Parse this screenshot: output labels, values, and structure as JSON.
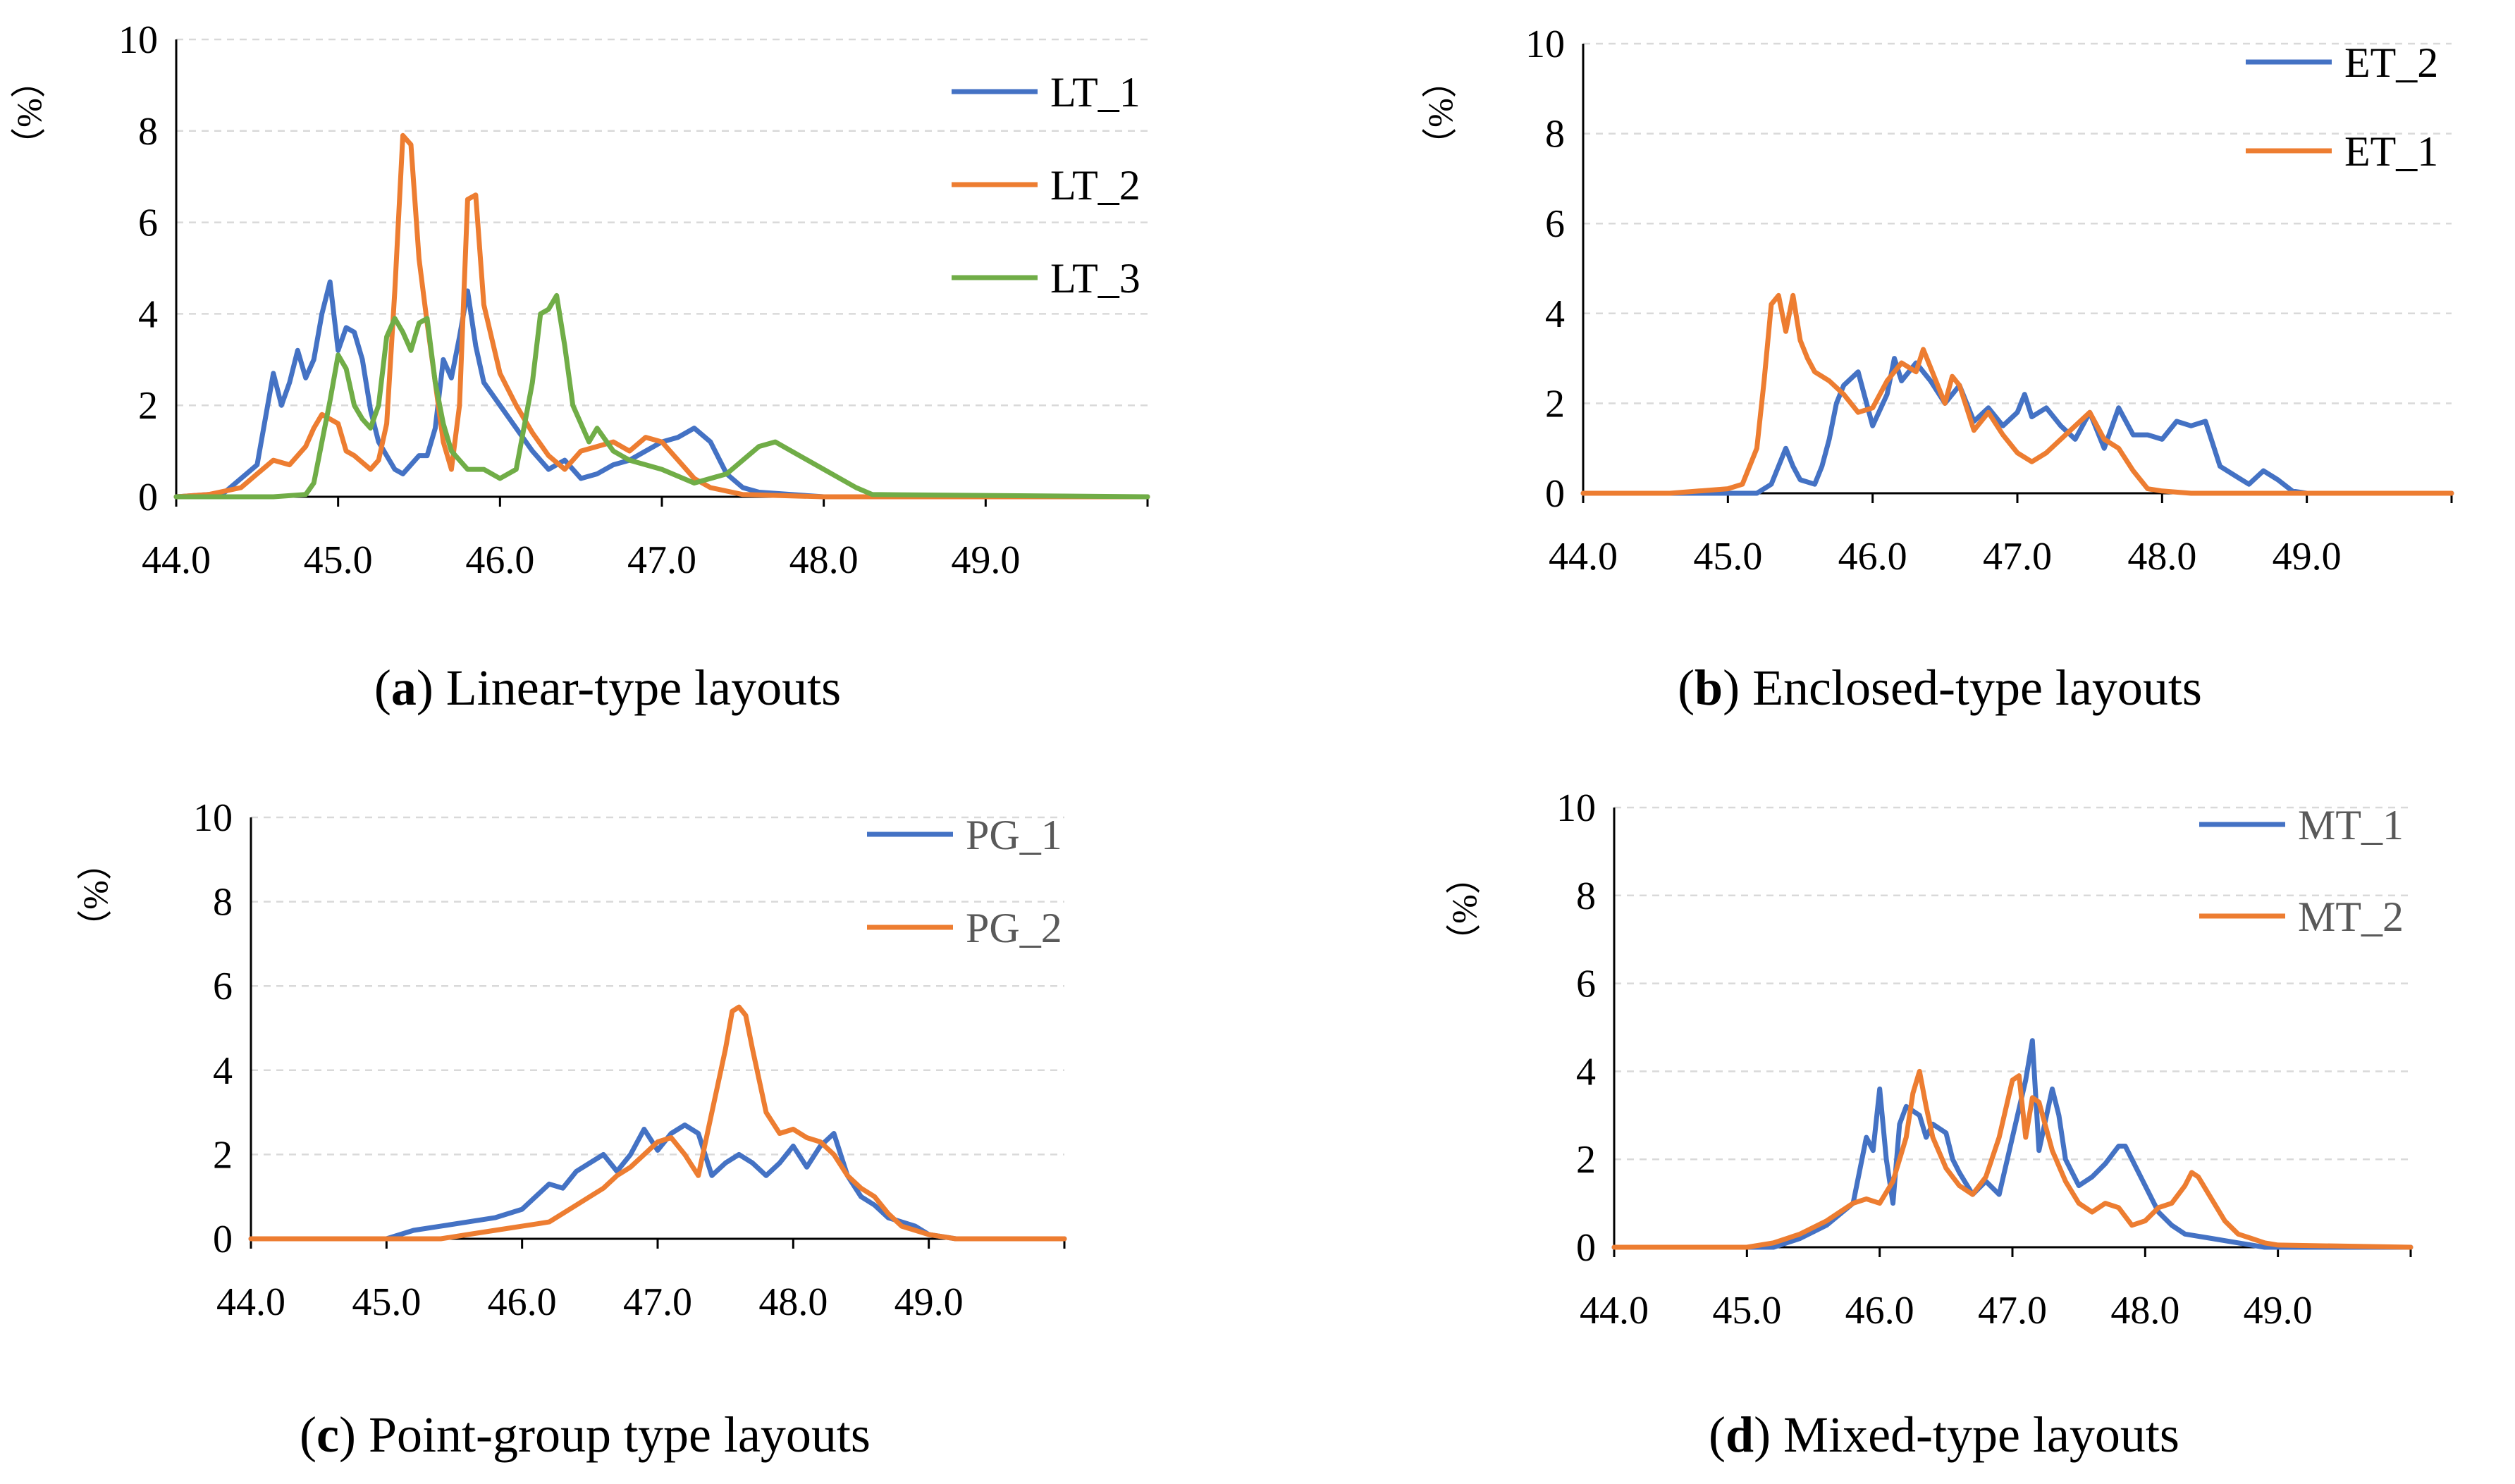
{
  "colors": {
    "blue": "#4472C4",
    "orange": "#ED7D31",
    "green": "#70AD47",
    "gridline": "#d9d9d9",
    "axis": "#000000"
  },
  "chart_data": [
    {
      "id": "a",
      "type": "line",
      "caption_letter": "a",
      "caption_text": " Linear-type layouts",
      "ylabel": "（%）",
      "x_tick_labels": [
        "44.0",
        "45.0",
        "46.0",
        "47.0",
        "48.0",
        "49.0"
      ],
      "y_tick_labels": [
        "0",
        "2",
        "4",
        "6",
        "8",
        "10"
      ],
      "xlim": [
        44.0,
        50.0
      ],
      "ylim": [
        0,
        10
      ],
      "legend_position": "top-right",
      "series": [
        {
          "name": "LT_1",
          "color": "#4472C4",
          "x": [
            44.0,
            44.2,
            44.3,
            44.4,
            44.5,
            44.6,
            44.65,
            44.7,
            44.75,
            44.8,
            44.85,
            44.9,
            44.95,
            45.0,
            45.05,
            45.1,
            45.15,
            45.2,
            45.25,
            45.3,
            45.35,
            45.4,
            45.5,
            45.55,
            45.6,
            45.65,
            45.7,
            45.75,
            45.8,
            45.85,
            45.9,
            46.0,
            46.1,
            46.2,
            46.3,
            46.4,
            46.5,
            46.6,
            46.7,
            46.8,
            46.9,
            47.0,
            47.1,
            47.2,
            47.3,
            47.4,
            47.5,
            47.6,
            47.8,
            48.0,
            50.0
          ],
          "y": [
            0,
            0.05,
            0.1,
            0.4,
            0.7,
            2.7,
            2.0,
            2.5,
            3.2,
            2.6,
            3.0,
            4.0,
            4.7,
            3.2,
            3.7,
            3.6,
            3.0,
            1.9,
            1.2,
            0.9,
            0.6,
            0.5,
            0.9,
            0.9,
            1.5,
            3.0,
            2.6,
            3.5,
            4.5,
            3.3,
            2.5,
            2.0,
            1.5,
            1.0,
            0.6,
            0.8,
            0.4,
            0.5,
            0.7,
            0.8,
            1.0,
            1.2,
            1.3,
            1.5,
            1.2,
            0.5,
            0.2,
            0.1,
            0.05,
            0,
            0
          ]
        },
        {
          "name": "LT_2",
          "color": "#ED7D31",
          "x": [
            44.0,
            44.2,
            44.4,
            44.5,
            44.6,
            44.7,
            44.8,
            44.85,
            44.9,
            45.0,
            45.05,
            45.1,
            45.2,
            45.25,
            45.3,
            45.35,
            45.4,
            45.45,
            45.5,
            45.55,
            45.6,
            45.65,
            45.7,
            45.75,
            45.8,
            45.85,
            45.9,
            46.0,
            46.1,
            46.2,
            46.3,
            46.4,
            46.5,
            46.6,
            46.7,
            46.8,
            46.9,
            47.0,
            47.1,
            47.2,
            47.3,
            47.5,
            48.0,
            50.0
          ],
          "y": [
            0,
            0.05,
            0.2,
            0.5,
            0.8,
            0.7,
            1.1,
            1.5,
            1.8,
            1.6,
            1.0,
            0.9,
            0.6,
            0.8,
            1.6,
            4.5,
            7.9,
            7.7,
            5.2,
            3.8,
            2.5,
            1.2,
            0.6,
            2.0,
            6.5,
            6.6,
            4.2,
            2.7,
            2.0,
            1.4,
            0.9,
            0.6,
            1.0,
            1.1,
            1.2,
            1.0,
            1.3,
            1.2,
            0.8,
            0.4,
            0.2,
            0.05,
            0,
            0
          ]
        },
        {
          "name": "LT_3",
          "color": "#70AD47",
          "x": [
            44.0,
            44.6,
            44.8,
            44.85,
            44.9,
            44.95,
            45.0,
            45.05,
            45.1,
            45.15,
            45.2,
            45.25,
            45.3,
            45.35,
            45.4,
            45.45,
            45.5,
            45.55,
            45.6,
            45.65,
            45.7,
            45.8,
            45.9,
            46.0,
            46.1,
            46.2,
            46.25,
            46.3,
            46.35,
            46.4,
            46.45,
            46.5,
            46.55,
            46.6,
            46.7,
            46.8,
            47.0,
            47.2,
            47.4,
            47.5,
            47.6,
            47.7,
            47.8,
            47.9,
            48.0,
            48.1,
            48.2,
            48.3,
            50.0
          ],
          "y": [
            0,
            0,
            0.05,
            0.3,
            1.2,
            2.1,
            3.1,
            2.8,
            2.0,
            1.7,
            1.5,
            2.0,
            3.5,
            3.9,
            3.6,
            3.2,
            3.8,
            3.9,
            2.5,
            1.6,
            1.0,
            0.6,
            0.6,
            0.4,
            0.6,
            2.5,
            4.0,
            4.1,
            4.4,
            3.3,
            2.0,
            1.6,
            1.2,
            1.5,
            1.0,
            0.8,
            0.6,
            0.3,
            0.5,
            0.8,
            1.1,
            1.2,
            1.0,
            0.8,
            0.6,
            0.4,
            0.2,
            0.05,
            0
          ]
        }
      ]
    },
    {
      "id": "b",
      "type": "line",
      "caption_letter": "b",
      "caption_text": " Enclosed-type layouts",
      "ylabel": "（%）",
      "x_tick_labels": [
        "44.0",
        "45.0",
        "46.0",
        "47.0",
        "48.0",
        "49.0"
      ],
      "y_tick_labels": [
        "0",
        "2",
        "4",
        "6",
        "8",
        "10"
      ],
      "xlim": [
        44.0,
        50.0
      ],
      "ylim": [
        0,
        10
      ],
      "legend_position": "top-right",
      "series": [
        {
          "name": "ET_2",
          "color": "#4472C4",
          "x": [
            44.0,
            45.0,
            45.2,
            45.3,
            45.35,
            45.4,
            45.45,
            45.5,
            45.6,
            45.65,
            45.7,
            45.75,
            45.8,
            45.9,
            46.0,
            46.1,
            46.15,
            46.2,
            46.3,
            46.4,
            46.5,
            46.6,
            46.7,
            46.8,
            46.9,
            47.0,
            47.05,
            47.1,
            47.2,
            47.3,
            47.4,
            47.5,
            47.6,
            47.7,
            47.8,
            47.9,
            48.0,
            48.1,
            48.2,
            48.3,
            48.4,
            48.5,
            48.6,
            48.7,
            48.8,
            48.9,
            49.0,
            50.0
          ],
          "y": [
            0,
            0,
            0,
            0.2,
            0.6,
            1.0,
            0.6,
            0.3,
            0.2,
            0.6,
            1.2,
            2.0,
            2.4,
            2.7,
            1.5,
            2.2,
            3.0,
            2.5,
            2.9,
            2.5,
            2.0,
            2.4,
            1.6,
            1.9,
            1.5,
            1.8,
            2.2,
            1.7,
            1.9,
            1.5,
            1.2,
            1.8,
            1.0,
            1.9,
            1.3,
            1.3,
            1.2,
            1.6,
            1.5,
            1.6,
            0.6,
            0.4,
            0.2,
            0.5,
            0.3,
            0.05,
            0,
            0
          ]
        },
        {
          "name": "ET_1",
          "color": "#ED7D31",
          "x": [
            44.0,
            44.6,
            44.8,
            45.0,
            45.1,
            45.2,
            45.25,
            45.3,
            45.35,
            45.4,
            45.45,
            45.5,
            45.55,
            45.6,
            45.7,
            45.8,
            45.9,
            46.0,
            46.1,
            46.2,
            46.3,
            46.35,
            46.4,
            46.5,
            46.55,
            46.6,
            46.7,
            46.8,
            46.9,
            47.0,
            47.1,
            47.2,
            47.3,
            47.4,
            47.5,
            47.6,
            47.7,
            47.8,
            47.9,
            48.0,
            48.2,
            50.0
          ],
          "y": [
            0,
            0,
            0.05,
            0.1,
            0.2,
            1.0,
            2.5,
            4.2,
            4.4,
            3.6,
            4.4,
            3.4,
            3.0,
            2.7,
            2.5,
            2.2,
            1.8,
            1.9,
            2.5,
            2.9,
            2.7,
            3.2,
            2.8,
            2.0,
            2.6,
            2.4,
            1.4,
            1.8,
            1.3,
            0.9,
            0.7,
            0.9,
            1.2,
            1.5,
            1.8,
            1.2,
            1.0,
            0.5,
            0.1,
            0.05,
            0,
            0
          ]
        }
      ]
    },
    {
      "id": "c",
      "type": "line",
      "caption_letter": "c",
      "caption_text": " Point-group type layouts",
      "ylabel": "（%）",
      "x_tick_labels": [
        "44.0",
        "45.0",
        "46.0",
        "47.0",
        "48.0",
        "49.0"
      ],
      "y_tick_labels": [
        "0",
        "2",
        "4",
        "6",
        "8",
        "10"
      ],
      "xlim": [
        44.0,
        50.0
      ],
      "ylim": [
        0,
        10
      ],
      "legend_position": "top-right",
      "series": [
        {
          "name": "PG_1",
          "color": "#4472C4",
          "x": [
            44.0,
            45.0,
            45.2,
            45.4,
            45.6,
            45.8,
            46.0,
            46.1,
            46.2,
            46.3,
            46.4,
            46.5,
            46.6,
            46.7,
            46.8,
            46.9,
            47.0,
            47.1,
            47.2,
            47.3,
            47.4,
            47.5,
            47.6,
            47.7,
            47.8,
            47.9,
            48.0,
            48.1,
            48.2,
            48.3,
            48.4,
            48.5,
            48.6,
            48.7,
            48.8,
            48.9,
            49.0,
            49.2,
            50.0
          ],
          "y": [
            0,
            0,
            0.2,
            0.3,
            0.4,
            0.5,
            0.7,
            1.0,
            1.3,
            1.2,
            1.6,
            1.8,
            2.0,
            1.6,
            2.0,
            2.6,
            2.1,
            2.5,
            2.7,
            2.5,
            1.5,
            1.8,
            2.0,
            1.8,
            1.5,
            1.8,
            2.2,
            1.7,
            2.2,
            2.5,
            1.5,
            1.0,
            0.8,
            0.5,
            0.4,
            0.3,
            0.1,
            0,
            0
          ]
        },
        {
          "name": "PG_2",
          "color": "#ED7D31",
          "x": [
            44.0,
            45.4,
            45.6,
            45.8,
            46.0,
            46.2,
            46.4,
            46.5,
            46.6,
            46.7,
            46.8,
            46.9,
            47.0,
            47.1,
            47.2,
            47.3,
            47.4,
            47.5,
            47.55,
            47.6,
            47.65,
            47.7,
            47.8,
            47.9,
            48.0,
            48.1,
            48.2,
            48.3,
            48.4,
            48.5,
            48.6,
            48.7,
            48.8,
            48.9,
            49.0,
            49.2,
            50.0
          ],
          "y": [
            0,
            0,
            0.1,
            0.2,
            0.3,
            0.4,
            0.8,
            1.0,
            1.2,
            1.5,
            1.7,
            2.0,
            2.3,
            2.4,
            2.0,
            1.5,
            3.0,
            4.5,
            5.4,
            5.5,
            5.3,
            4.5,
            3.0,
            2.5,
            2.6,
            2.4,
            2.3,
            2.0,
            1.5,
            1.2,
            1.0,
            0.6,
            0.3,
            0.2,
            0.1,
            0,
            0
          ]
        }
      ]
    },
    {
      "id": "d",
      "type": "line",
      "caption_letter": "d",
      "caption_text": " Mixed-type layouts",
      "ylabel": "（%）",
      "x_tick_labels": [
        "44.0",
        "45.0",
        "46.0",
        "47.0",
        "48.0",
        "49.0"
      ],
      "y_tick_labels": [
        "0",
        "2",
        "4",
        "6",
        "8",
        "10"
      ],
      "xlim": [
        44.0,
        50.0
      ],
      "ylim": [
        0,
        10
      ],
      "legend_position": "top-right",
      "series": [
        {
          "name": "MT_1",
          "color": "#4472C4",
          "x": [
            44.0,
            45.2,
            45.4,
            45.6,
            45.8,
            45.9,
            45.95,
            46.0,
            46.05,
            46.1,
            46.15,
            46.2,
            46.3,
            46.35,
            46.4,
            46.5,
            46.55,
            46.6,
            46.7,
            46.8,
            46.9,
            47.0,
            47.1,
            47.15,
            47.2,
            47.3,
            47.35,
            47.4,
            47.5,
            47.6,
            47.7,
            47.8,
            47.85,
            47.9,
            48.0,
            48.1,
            48.2,
            48.3,
            48.5,
            48.7,
            48.9,
            50.0
          ],
          "y": [
            0,
            0,
            0.2,
            0.5,
            1.0,
            2.5,
            2.2,
            3.6,
            2.0,
            1.0,
            2.8,
            3.2,
            3.0,
            2.5,
            2.8,
            2.6,
            2.0,
            1.7,
            1.2,
            1.5,
            1.2,
            2.5,
            3.8,
            4.7,
            2.2,
            3.6,
            3.0,
            2.0,
            1.4,
            1.6,
            1.9,
            2.3,
            2.3,
            2.0,
            1.4,
            0.8,
            0.5,
            0.3,
            0.2,
            0.1,
            0,
            0
          ]
        },
        {
          "name": "MT_2",
          "color": "#ED7D31",
          "x": [
            44.0,
            45.0,
            45.2,
            45.4,
            45.6,
            45.8,
            45.9,
            46.0,
            46.1,
            46.2,
            46.25,
            46.3,
            46.35,
            46.4,
            46.5,
            46.6,
            46.7,
            46.8,
            46.9,
            47.0,
            47.05,
            47.1,
            47.15,
            47.2,
            47.3,
            47.4,
            47.5,
            47.6,
            47.7,
            47.8,
            47.9,
            48.0,
            48.1,
            48.2,
            48.3,
            48.35,
            48.4,
            48.5,
            48.6,
            48.7,
            48.8,
            48.9,
            49.0,
            50.0
          ],
          "y": [
            0,
            0,
            0.1,
            0.3,
            0.6,
            1.0,
            1.1,
            1.0,
            1.5,
            2.5,
            3.5,
            4.0,
            3.2,
            2.5,
            1.8,
            1.4,
            1.2,
            1.6,
            2.5,
            3.8,
            3.9,
            2.5,
            3.4,
            3.3,
            2.2,
            1.5,
            1.0,
            0.8,
            1.0,
            0.9,
            0.5,
            0.6,
            0.9,
            1.0,
            1.4,
            1.7,
            1.6,
            1.1,
            0.6,
            0.3,
            0.2,
            0.1,
            0.05,
            0
          ]
        }
      ]
    }
  ]
}
